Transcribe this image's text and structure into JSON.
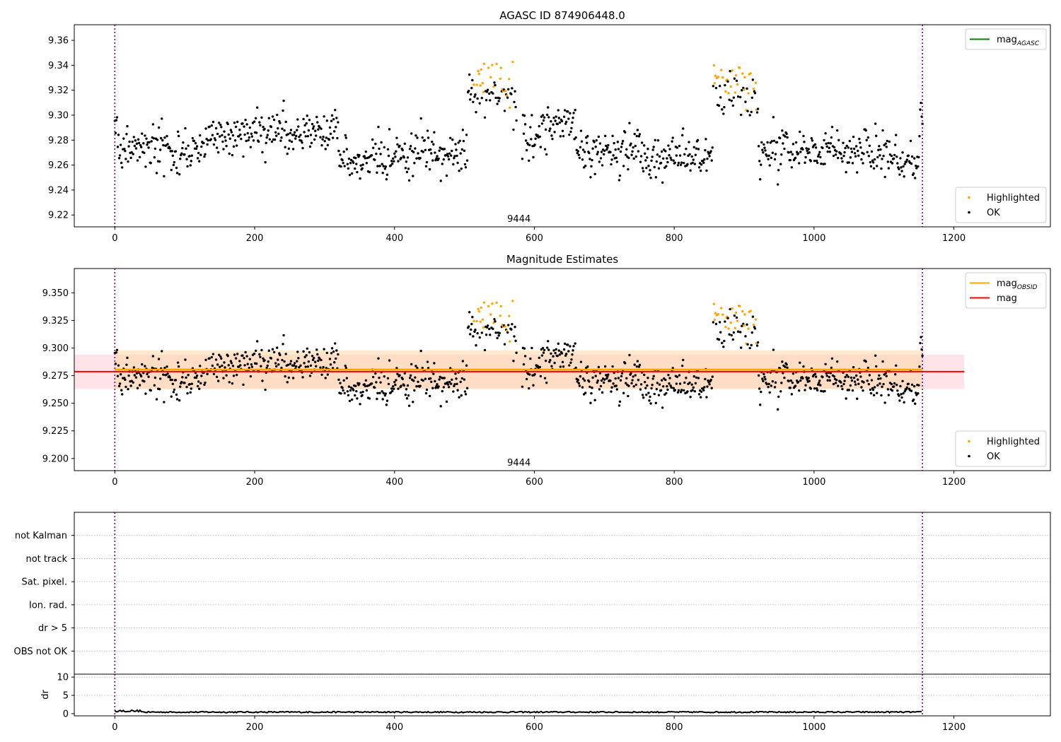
{
  "figure": {
    "background": "#ffffff"
  },
  "colors": {
    "ok": "#000000",
    "highlighted": "#ffa500",
    "mag_agasc": "#008000",
    "mag_obsid": "#ffa500",
    "mag": "#ff0000",
    "vline": "#800080",
    "band_mag": "#ffc0cb",
    "band_obsid": "#ffd8a8",
    "grid": "#b0b0b0"
  },
  "chart_data": [
    {
      "id": "agasc",
      "type": "scatter",
      "title": "AGASC ID 874906448.0",
      "xlim": [
        -58,
        1338
      ],
      "ylim": [
        9.2105,
        9.3725
      ],
      "xticks": [
        0,
        200,
        400,
        600,
        800,
        1000,
        1200
      ],
      "yticks": [
        9.22,
        9.24,
        9.26,
        9.28,
        9.3,
        9.32,
        9.34,
        9.36
      ],
      "ytick_decimals": 2,
      "vlines": [
        0,
        1155
      ],
      "hlines": [],
      "annotations": [
        {
          "text": "9444",
          "x": 578,
          "y": 9.2145
        }
      ],
      "legend_upper": {
        "placement": "top-right",
        "entries": [
          {
            "kind": "line",
            "color_key": "mag_agasc",
            "label": "mag",
            "sub": "AGASC"
          }
        ]
      },
      "legend_lower": {
        "placement": "bottom-right",
        "entries": [
          {
            "kind": "dot",
            "color_key": "highlighted",
            "label": "Highlighted"
          },
          {
            "kind": "dot",
            "color_key": "ok",
            "label": "OK"
          }
        ]
      },
      "series": [
        {
          "name": "OK",
          "role": "ok",
          "color_key": "ok"
        },
        {
          "name": "Highlighted",
          "role": "highlighted",
          "color_key": "highlighted"
        }
      ]
    },
    {
      "id": "mag-estimates",
      "type": "scatter",
      "title": "Magnitude Estimates",
      "xlim": [
        -58,
        1338
      ],
      "ylim": [
        9.189,
        9.372
      ],
      "xticks": [
        0,
        200,
        400,
        600,
        800,
        1000,
        1200
      ],
      "yticks": [
        9.2,
        9.225,
        9.25,
        9.275,
        9.3,
        9.325,
        9.35
      ],
      "ytick_decimals": 3,
      "vlines": [
        0,
        1155
      ],
      "bands": [
        {
          "x0": -58,
          "x1": 1215,
          "y0": 9.263,
          "y1": 9.294,
          "color_key": "band_mag",
          "opacity": 0.45
        },
        {
          "x0": 0,
          "x1": 1155,
          "y0": 9.263,
          "y1": 9.298,
          "color_key": "band_obsid",
          "opacity": 0.55
        }
      ],
      "hlines": [
        {
          "y": 9.2805,
          "x0": 0,
          "x1": 1155,
          "color_key": "mag_obsid",
          "width": 2.5
        },
        {
          "y": 9.2787,
          "x0": -58,
          "x1": 1215,
          "color_key": "mag",
          "width": 2
        }
      ],
      "annotations": [
        {
          "text": "9444",
          "x": 578,
          "y": 9.1935
        }
      ],
      "legend_upper": {
        "placement": "top-right",
        "entries": [
          {
            "kind": "line",
            "color_key": "mag_obsid",
            "label": "mag",
            "sub": "OBSID"
          },
          {
            "kind": "line",
            "color_key": "mag",
            "label": "mag"
          }
        ]
      },
      "legend_lower": {
        "placement": "bottom-right",
        "entries": [
          {
            "kind": "dot",
            "color_key": "highlighted",
            "label": "Highlighted"
          },
          {
            "kind": "dot",
            "color_key": "ok",
            "label": "OK"
          }
        ]
      },
      "series": [
        {
          "name": "OK",
          "role": "ok",
          "color_key": "ok"
        },
        {
          "name": "Highlighted",
          "role": "highlighted",
          "color_key": "highlighted"
        }
      ]
    },
    {
      "id": "flags",
      "type": "table",
      "xlim": [
        -58,
        1338
      ],
      "ylim": [
        0,
        7
      ],
      "categories": [
        "OBS not OK",
        "dr > 5",
        "Ion. rad.",
        "Sat. pixel.",
        "not track",
        "not Kalman"
      ],
      "vlines": [
        0,
        1155
      ],
      "flag_counts": [
        0,
        0,
        0,
        0,
        0,
        0
      ]
    },
    {
      "id": "dr",
      "type": "line",
      "ylabel": "dr",
      "xlim": [
        -58,
        1338
      ],
      "ylim": [
        -0.6,
        10.8
      ],
      "xticks": [
        0,
        200,
        400,
        600,
        800,
        1000,
        1200
      ],
      "yticks": [
        0,
        5,
        10
      ],
      "vlines": [
        0,
        1155
      ],
      "series": [
        {
          "role": "dr",
          "color_key": "ok"
        }
      ]
    }
  ]
}
